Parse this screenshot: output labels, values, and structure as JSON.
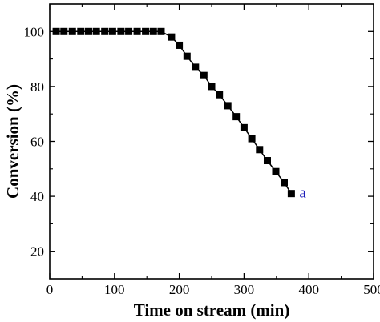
{
  "chart_data": {
    "type": "line",
    "title": "",
    "xlabel": "Time on stream (min)",
    "ylabel": "Conversion (%)",
    "xlim": [
      0,
      500
    ],
    "ylim": [
      10,
      110
    ],
    "xticks": [
      0,
      100,
      200,
      300,
      400,
      500
    ],
    "yticks": [
      20,
      40,
      60,
      80,
      100
    ],
    "grid": false,
    "legend": "none",
    "series": [
      {
        "name": "a",
        "color": "#000000",
        "marker": "square",
        "x": [
          10,
          22,
          35,
          48,
          60,
          72,
          85,
          97,
          110,
          122,
          135,
          148,
          160,
          172,
          188,
          200,
          212,
          225,
          238,
          250,
          262,
          275,
          288,
          300,
          312,
          324,
          336,
          349,
          362,
          373
        ],
        "y": [
          100,
          100,
          100,
          100,
          100,
          100,
          100,
          100,
          100,
          100,
          100,
          100,
          100,
          100,
          98,
          95,
          91,
          87,
          84,
          80,
          77,
          73,
          69,
          65,
          61,
          57,
          53,
          49,
          45,
          41
        ]
      }
    ],
    "annotations": []
  }
}
